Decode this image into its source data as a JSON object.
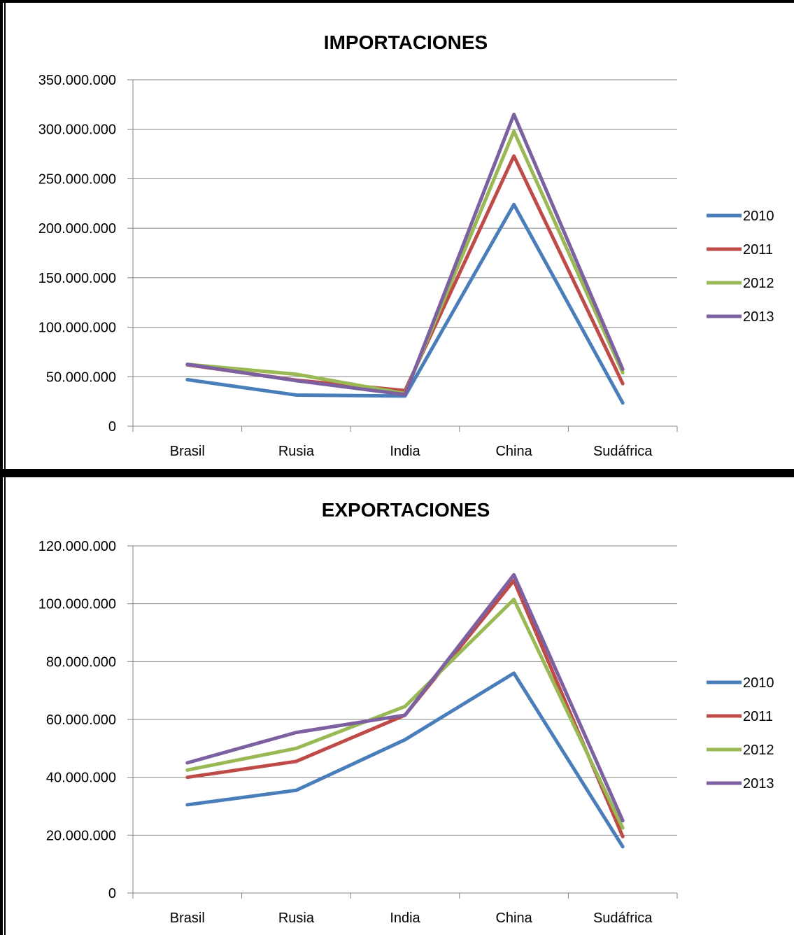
{
  "chart_data": [
    {
      "type": "line",
      "title": "IMPORTACIONES",
      "categories": [
        "Brasil",
        "Rusia",
        "India",
        "China",
        "Sudáfrica"
      ],
      "ylim": [
        0,
        350000000
      ],
      "yticks": [
        "0",
        "50.000.000",
        "100.000.000",
        "150.000.000",
        "200.000.000",
        "250.000.000",
        "300.000.000",
        "350.000.000"
      ],
      "grid": true,
      "legend": "right",
      "series": [
        {
          "name": "2010",
          "color": "#4a7ebb",
          "values": [
            47000000,
            31500000,
            30500000,
            224000000,
            23500000
          ]
        },
        {
          "name": "2011",
          "color": "#be4b48",
          "values": [
            62000000,
            46500000,
            36000000,
            273000000,
            43000000
          ]
        },
        {
          "name": "2012",
          "color": "#98b954",
          "values": [
            62500000,
            52500000,
            33000000,
            298000000,
            54000000
          ]
        },
        {
          "name": "2013",
          "color": "#7d60a0",
          "values": [
            62500000,
            46000000,
            32000000,
            315000000,
            57500000
          ]
        }
      ]
    },
    {
      "type": "line",
      "title": "EXPORTACIONES",
      "categories": [
        "Brasil",
        "Rusia",
        "India",
        "China",
        "Sudáfrica"
      ],
      "ylim": [
        0,
        120000000
      ],
      "yticks": [
        "0",
        "20.000.000",
        "40.000.000",
        "60.000.000",
        "80.000.000",
        "100.000.000",
        "120.000.000"
      ],
      "grid": true,
      "legend": "right",
      "series": [
        {
          "name": "2010",
          "color": "#4a7ebb",
          "values": [
            30500000,
            35500000,
            53000000,
            76000000,
            16000000
          ]
        },
        {
          "name": "2011",
          "color": "#be4b48",
          "values": [
            40000000,
            45500000,
            61500000,
            108000000,
            19500000
          ]
        },
        {
          "name": "2012",
          "color": "#98b954",
          "values": [
            42500000,
            50000000,
            64500000,
            101500000,
            22500000
          ]
        },
        {
          "name": "2013",
          "color": "#7d60a0",
          "values": [
            45000000,
            55500000,
            61500000,
            110000000,
            25000000
          ]
        }
      ]
    }
  ]
}
